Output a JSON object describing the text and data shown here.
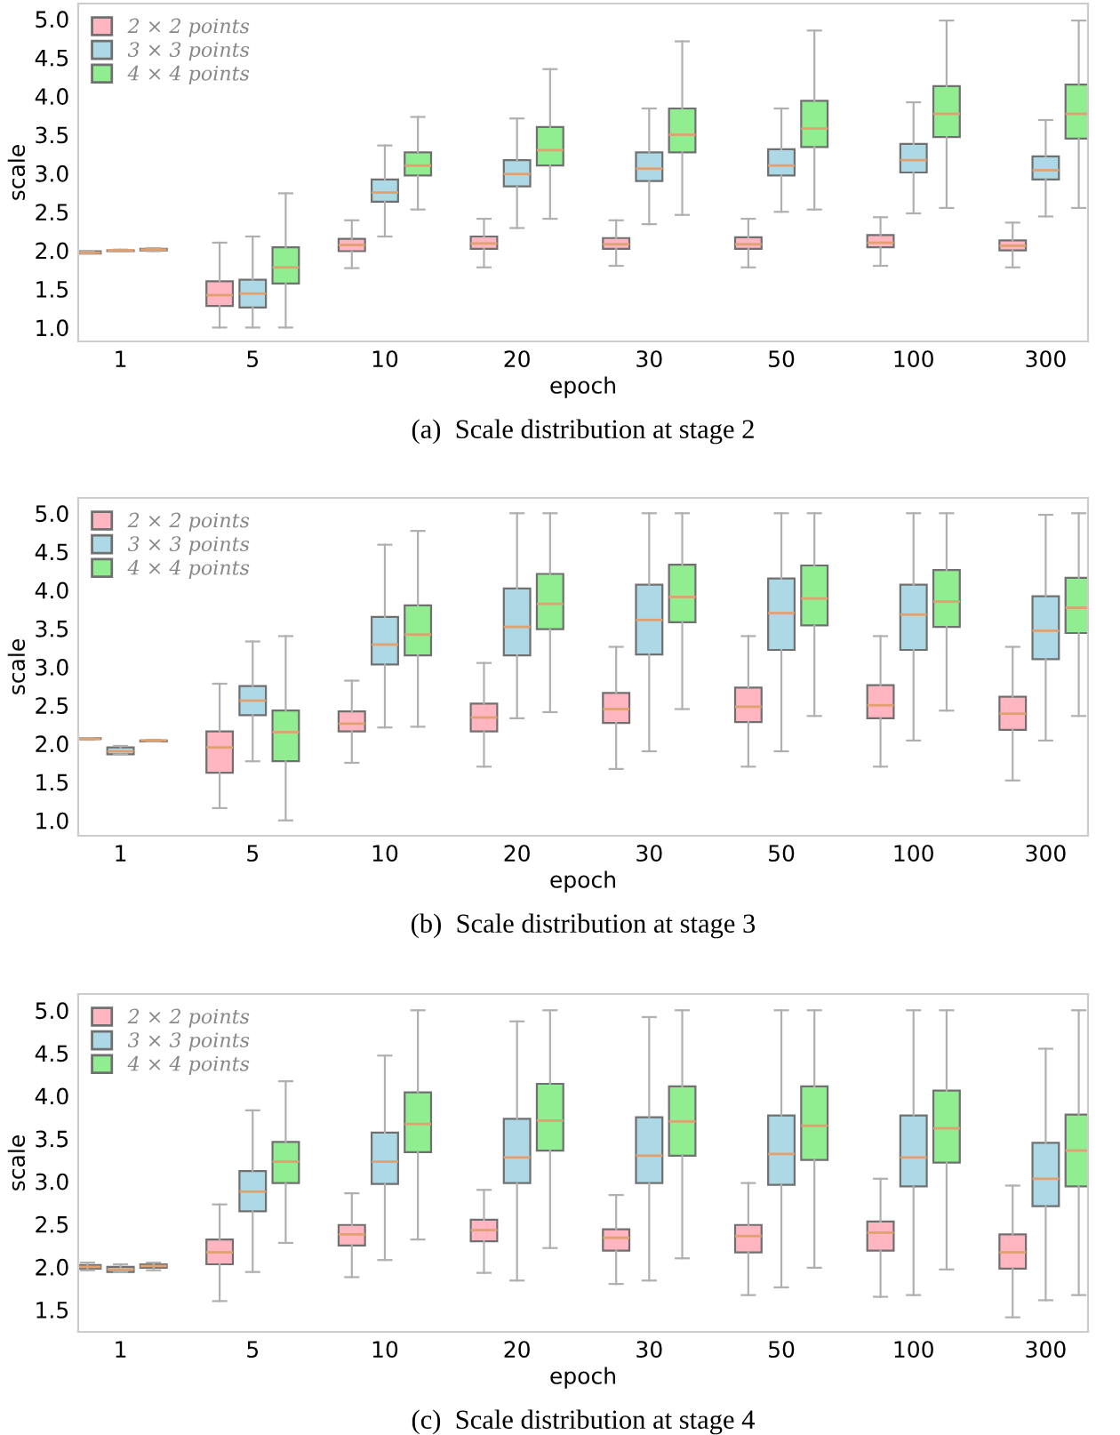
{
  "chart_data": [
    {
      "type": "box",
      "title": "(a)  Scale distribution at stage 2",
      "xlabel": "epoch",
      "ylabel": "scale",
      "categories": [
        "1",
        "5",
        "10",
        "20",
        "30",
        "50",
        "100",
        "300"
      ],
      "ylim": [
        0.82,
        5.2
      ],
      "yticks": [
        {
          "value": 1,
          "label": "1.0"
        },
        1.5,
        {
          "value": 2,
          "label": "2.0"
        },
        2.5,
        {
          "value": 3,
          "label": "3.0"
        },
        3.5,
        {
          "value": 4,
          "label": "4.0"
        },
        4.5,
        {
          "value": 5,
          "label": "5.0"
        }
      ],
      "legend": "top left",
      "grid": false,
      "series": [
        {
          "name": "2 × 2 points",
          "color": "#ffb6c1",
          "boxes": [
            {
              "low": 1.96,
              "q1": 1.96,
              "median": 1.97,
              "q3": 1.99,
              "high": 1.99
            },
            {
              "low": 1.0,
              "q1": 1.28,
              "median": 1.42,
              "q3": 1.6,
              "high": 2.1
            },
            {
              "low": 1.77,
              "q1": 1.99,
              "median": 2.07,
              "q3": 2.15,
              "high": 2.39
            },
            {
              "low": 1.78,
              "q1": 2.02,
              "median": 2.09,
              "q3": 2.18,
              "high": 2.41
            },
            {
              "low": 1.8,
              "q1": 2.02,
              "median": 2.08,
              "q3": 2.16,
              "high": 2.39
            },
            {
              "low": 1.78,
              "q1": 2.02,
              "median": 2.08,
              "q3": 2.17,
              "high": 2.41
            },
            {
              "low": 1.8,
              "q1": 2.04,
              "median": 2.1,
              "q3": 2.2,
              "high": 2.43
            },
            {
              "low": 1.78,
              "q1": 2.0,
              "median": 2.06,
              "q3": 2.13,
              "high": 2.36
            }
          ]
        },
        {
          "name": "3 × 3 points",
          "color": "#add8e6",
          "boxes": [
            {
              "low": 1.99,
              "q1": 1.99,
              "median": 2.0,
              "q3": 2.0,
              "high": 2.01
            },
            {
              "low": 1.0,
              "q1": 1.26,
              "median": 1.44,
              "q3": 1.62,
              "high": 2.18
            },
            {
              "low": 2.18,
              "q1": 2.63,
              "median": 2.75,
              "q3": 2.92,
              "high": 3.36
            },
            {
              "low": 2.29,
              "q1": 2.83,
              "median": 2.99,
              "q3": 3.17,
              "high": 3.71
            },
            {
              "low": 2.34,
              "q1": 2.9,
              "median": 3.06,
              "q3": 3.27,
              "high": 3.84
            },
            {
              "low": 2.5,
              "q1": 2.97,
              "median": 3.1,
              "q3": 3.31,
              "high": 3.84
            },
            {
              "low": 2.48,
              "q1": 3.01,
              "median": 3.17,
              "q3": 3.38,
              "high": 3.92
            },
            {
              "low": 2.44,
              "q1": 2.92,
              "median": 3.04,
              "q3": 3.22,
              "high": 3.69
            }
          ]
        },
        {
          "name": "4 × 4 points",
          "color": "#90ee90",
          "boxes": [
            {
              "low": 1.99,
              "q1": 2.0,
              "median": 2.01,
              "q3": 2.02,
              "high": 2.03
            },
            {
              "low": 1.0,
              "q1": 1.57,
              "median": 1.78,
              "q3": 2.04,
              "high": 2.74
            },
            {
              "low": 2.53,
              "q1": 2.97,
              "median": 3.1,
              "q3": 3.27,
              "high": 3.73
            },
            {
              "low": 2.41,
              "q1": 3.1,
              "median": 3.3,
              "q3": 3.6,
              "high": 4.35
            },
            {
              "low": 2.46,
              "q1": 3.27,
              "median": 3.5,
              "q3": 3.84,
              "high": 4.71
            },
            {
              "low": 2.53,
              "q1": 3.34,
              "median": 3.58,
              "q3": 3.94,
              "high": 4.85
            },
            {
              "low": 2.55,
              "q1": 3.47,
              "median": 3.77,
              "q3": 4.13,
              "high": 4.98
            },
            {
              "low": 2.55,
              "q1": 3.45,
              "median": 3.77,
              "q3": 4.15,
              "high": 4.98
            }
          ]
        }
      ]
    },
    {
      "type": "box",
      "title": "(b)  Scale distribution at stage 3",
      "xlabel": "epoch",
      "ylabel": "scale",
      "categories": [
        "1",
        "5",
        "10",
        "20",
        "30",
        "50",
        "100",
        "300"
      ],
      "ylim": [
        0.8,
        5.2
      ],
      "yticks": [
        {
          "value": 1,
          "label": "1.0"
        },
        1.5,
        {
          "value": 2,
          "label": "2.0"
        },
        2.5,
        {
          "value": 3,
          "label": "3.0"
        },
        3.5,
        {
          "value": 4,
          "label": "4.0"
        },
        4.5,
        {
          "value": 5,
          "label": "5.0"
        }
      ],
      "legend": "top left",
      "grid": false,
      "series": [
        {
          "name": "2 × 2 points",
          "color": "#ffb6c1",
          "boxes": [
            {
              "low": 2.05,
              "q1": 2.06,
              "median": 2.06,
              "q3": 2.07,
              "high": 2.07
            },
            {
              "low": 1.16,
              "q1": 1.62,
              "median": 1.95,
              "q3": 2.16,
              "high": 2.78
            },
            {
              "low": 1.75,
              "q1": 2.16,
              "median": 2.26,
              "q3": 2.42,
              "high": 2.82
            },
            {
              "low": 1.7,
              "q1": 2.16,
              "median": 2.34,
              "q3": 2.52,
              "high": 3.05
            },
            {
              "low": 1.67,
              "q1": 2.27,
              "median": 2.45,
              "q3": 2.66,
              "high": 3.26
            },
            {
              "low": 1.7,
              "q1": 2.28,
              "median": 2.48,
              "q3": 2.73,
              "high": 3.4
            },
            {
              "low": 1.7,
              "q1": 2.33,
              "median": 2.5,
              "q3": 2.76,
              "high": 3.4
            },
            {
              "low": 1.52,
              "q1": 2.18,
              "median": 2.39,
              "q3": 2.61,
              "high": 3.26
            }
          ]
        },
        {
          "name": "3 × 3 points",
          "color": "#add8e6",
          "boxes": [
            {
              "low": 1.86,
              "q1": 1.86,
              "median": 1.9,
              "q3": 1.95,
              "high": 1.97
            },
            {
              "low": 1.77,
              "q1": 2.37,
              "median": 2.56,
              "q3": 2.75,
              "high": 3.33
            },
            {
              "low": 2.21,
              "q1": 3.03,
              "median": 3.29,
              "q3": 3.65,
              "high": 4.59
            },
            {
              "low": 2.33,
              "q1": 3.15,
              "median": 3.52,
              "q3": 4.02,
              "high": 5.0
            },
            {
              "low": 1.9,
              "q1": 3.16,
              "median": 3.61,
              "q3": 4.07,
              "high": 5.0
            },
            {
              "low": 1.9,
              "q1": 3.22,
              "median": 3.7,
              "q3": 4.15,
              "high": 5.0
            },
            {
              "low": 2.04,
              "q1": 3.22,
              "median": 3.68,
              "q3": 4.07,
              "high": 5.0
            },
            {
              "low": 2.04,
              "q1": 3.1,
              "median": 3.47,
              "q3": 3.92,
              "high": 4.98
            }
          ]
        },
        {
          "name": "4 × 4 points",
          "color": "#90ee90",
          "boxes": [
            {
              "low": 2.03,
              "q1": 2.03,
              "median": 2.04,
              "q3": 2.04,
              "high": 2.05
            },
            {
              "low": 1.0,
              "q1": 1.77,
              "median": 2.15,
              "q3": 2.43,
              "high": 3.4
            },
            {
              "low": 2.22,
              "q1": 3.15,
              "median": 3.42,
              "q3": 3.8,
              "high": 4.77
            },
            {
              "low": 2.41,
              "q1": 3.49,
              "median": 3.82,
              "q3": 4.21,
              "high": 5.0
            },
            {
              "low": 2.45,
              "q1": 3.58,
              "median": 3.91,
              "q3": 4.33,
              "high": 5.0
            },
            {
              "low": 2.36,
              "q1": 3.54,
              "median": 3.89,
              "q3": 4.32,
              "high": 5.0
            },
            {
              "low": 2.43,
              "q1": 3.52,
              "median": 3.85,
              "q3": 4.26,
              "high": 5.0
            },
            {
              "low": 2.36,
              "q1": 3.44,
              "median": 3.77,
              "q3": 4.16,
              "high": 5.0
            }
          ]
        }
      ]
    },
    {
      "type": "box",
      "title": "(c)  Scale distribution at stage 4",
      "xlabel": "epoch",
      "ylabel": "scale",
      "categories": [
        "1",
        "5",
        "10",
        "20",
        "30",
        "50",
        "100",
        "300"
      ],
      "ylim": [
        1.24,
        5.19
      ],
      "yticks": [
        1.5,
        {
          "value": 2,
          "label": "2.0"
        },
        2.5,
        {
          "value": 3,
          "label": "3.0"
        },
        3.5,
        {
          "value": 4,
          "label": "4.0"
        },
        4.5,
        {
          "value": 5,
          "label": "5.0"
        }
      ],
      "legend": "top left",
      "grid": false,
      "series": [
        {
          "name": "2 × 2 points",
          "color": "#ffb6c1",
          "boxes": [
            {
              "low": 1.96,
              "q1": 1.98,
              "median": 2.0,
              "q3": 2.02,
              "high": 2.05
            },
            {
              "low": 1.6,
              "q1": 2.03,
              "median": 2.17,
              "q3": 2.32,
              "high": 2.73
            },
            {
              "low": 1.88,
              "q1": 2.25,
              "median": 2.38,
              "q3": 2.49,
              "high": 2.86
            },
            {
              "low": 1.93,
              "q1": 2.3,
              "median": 2.43,
              "q3": 2.55,
              "high": 2.9
            },
            {
              "low": 1.8,
              "q1": 2.19,
              "median": 2.34,
              "q3": 2.44,
              "high": 2.84
            },
            {
              "low": 1.67,
              "q1": 2.17,
              "median": 2.36,
              "q3": 2.49,
              "high": 2.98
            },
            {
              "low": 1.65,
              "q1": 2.19,
              "median": 2.4,
              "q3": 2.53,
              "high": 3.03
            },
            {
              "low": 1.41,
              "q1": 1.98,
              "median": 2.17,
              "q3": 2.38,
              "high": 2.95
            }
          ]
        },
        {
          "name": "3 × 3 points",
          "color": "#add8e6",
          "boxes": [
            {
              "low": 1.94,
              "q1": 1.94,
              "median": 1.97,
              "q3": 2.0,
              "high": 2.03
            },
            {
              "low": 1.94,
              "q1": 2.65,
              "median": 2.88,
              "q3": 3.12,
              "high": 3.83
            },
            {
              "low": 2.08,
              "q1": 2.97,
              "median": 3.23,
              "q3": 3.57,
              "high": 4.47
            },
            {
              "low": 1.84,
              "q1": 2.98,
              "median": 3.28,
              "q3": 3.73,
              "high": 4.87
            },
            {
              "low": 1.84,
              "q1": 2.98,
              "median": 3.3,
              "q3": 3.75,
              "high": 4.92
            },
            {
              "low": 1.76,
              "q1": 2.96,
              "median": 3.32,
              "q3": 3.77,
              "high": 5.0
            },
            {
              "low": 1.67,
              "q1": 2.94,
              "median": 3.28,
              "q3": 3.77,
              "high": 5.0
            },
            {
              "low": 1.61,
              "q1": 2.71,
              "median": 3.03,
              "q3": 3.45,
              "high": 4.55
            }
          ]
        },
        {
          "name": "4 × 4 points",
          "color": "#90ee90",
          "boxes": [
            {
              "low": 1.96,
              "q1": 1.99,
              "median": 2.01,
              "q3": 2.03,
              "high": 2.05
            },
            {
              "low": 2.28,
              "q1": 2.98,
              "median": 3.23,
              "q3": 3.46,
              "high": 4.17
            },
            {
              "low": 2.32,
              "q1": 3.34,
              "median": 3.67,
              "q3": 4.04,
              "high": 5.0
            },
            {
              "low": 2.22,
              "q1": 3.36,
              "median": 3.71,
              "q3": 4.14,
              "high": 5.0
            },
            {
              "low": 2.1,
              "q1": 3.3,
              "median": 3.7,
              "q3": 4.11,
              "high": 5.0
            },
            {
              "low": 1.99,
              "q1": 3.25,
              "median": 3.65,
              "q3": 4.11,
              "high": 5.0
            },
            {
              "low": 1.97,
              "q1": 3.22,
              "median": 3.62,
              "q3": 4.06,
              "high": 5.0
            },
            {
              "low": 1.67,
              "q1": 2.94,
              "median": 3.36,
              "q3": 3.78,
              "high": 5.0
            }
          ]
        }
      ]
    }
  ]
}
